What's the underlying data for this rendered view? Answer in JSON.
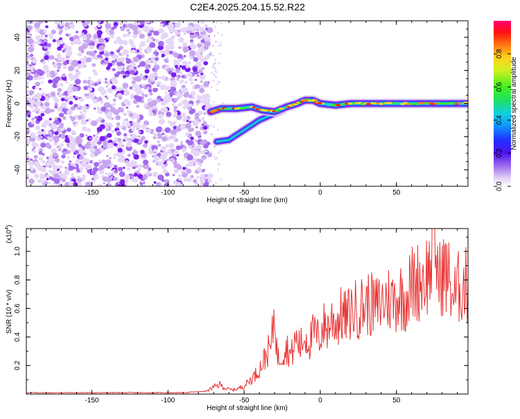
{
  "title": "C2E4.2025.204.15.52.R22",
  "colorbar": {
    "label": "Normalized spectral amplitude",
    "ticks": [
      "0.0",
      "0.2",
      "0.4",
      "0.6",
      "0.8"
    ],
    "tick_values": [
      0.0,
      0.2,
      0.4,
      0.6,
      0.8
    ]
  },
  "chart_data": [
    {
      "type": "heatmap",
      "xlabel": "Height of straight line (km)",
      "ylabel": "Frequency (Hz)",
      "xlim": [
        -193,
        97
      ],
      "ylim": [
        -50,
        50
      ],
      "x_ticks": [
        -150,
        -100,
        -50,
        0,
        50
      ],
      "x_tick_labels": [
        "-150",
        "-100",
        "-50",
        "0",
        "50"
      ],
      "y_ticks": [
        -40,
        -20,
        0,
        20,
        40
      ],
      "y_tick_labels": [
        "-40",
        "-20",
        "0",
        "20",
        "40"
      ],
      "description_regions": [
        {
          "x_range": [
            -193,
            -72
          ],
          "y_range": [
            -50,
            50
          ],
          "level": "low (purple noise)"
        },
        {
          "x_range": [
            -72,
            97
          ],
          "y_range": [
            -3,
            3
          ],
          "level": "high (signal band near 0 Hz)"
        }
      ],
      "signal_track": {
        "x": [
          -72,
          -65,
          -55,
          -45,
          -38,
          -30,
          -22,
          -15,
          -10,
          -5,
          0,
          10,
          20,
          30,
          40,
          50,
          60,
          70,
          80,
          90,
          97
        ],
        "y": [
          -5,
          -3,
          -3,
          -2,
          -4,
          -5,
          -2,
          0,
          2,
          2,
          0,
          -1,
          0,
          0,
          0,
          0,
          0,
          0,
          0,
          0,
          0
        ]
      },
      "secondary_track": {
        "x": [
          -68,
          -60,
          -55,
          -50,
          -45,
          -40,
          -35,
          -30,
          -25
        ],
        "y": [
          -23,
          -22,
          -19,
          -16,
          -13,
          -10,
          -8,
          -6,
          -4
        ]
      }
    },
    {
      "type": "line",
      "xlabel": "Height of straight line (km)",
      "ylabel": "SNR (10 * v/v)",
      "y_multiplier_label": "(x10",
      "y_multiplier_exp": "4",
      "xlim": [
        -193,
        97
      ],
      "ylim": [
        0,
        1.16
      ],
      "x_ticks": [
        -150,
        -100,
        -50,
        0,
        50
      ],
      "x_tick_labels": [
        "-150",
        "-100",
        "-50",
        "0",
        "50"
      ],
      "y_ticks": [
        0.2,
        0.4,
        0.6,
        0.8,
        1.0
      ],
      "y_tick_labels": [
        "0.2",
        "0.4",
        "0.6",
        "0.8",
        "1.0"
      ],
      "series": [
        {
          "color": "#e83030",
          "x": [
            -193,
            -170,
            -150,
            -130,
            -110,
            -90,
            -75,
            -70,
            -66,
            -62,
            -58,
            -54,
            -50,
            -46,
            -42,
            -38,
            -35,
            -32,
            -30,
            -28,
            -25,
            -22,
            -19,
            -16,
            -13,
            -10,
            -7,
            -4,
            -1,
            2,
            5,
            8,
            11,
            14,
            17,
            20,
            24,
            28,
            32,
            36,
            40,
            44,
            48,
            52,
            56,
            60,
            64,
            68,
            72,
            74,
            76,
            78,
            80,
            84,
            88,
            92,
            97
          ],
          "y": [
            0.01,
            0.01,
            0.01,
            0.01,
            0.01,
            0.01,
            0.02,
            0.05,
            0.07,
            0.04,
            0.03,
            0.04,
            0.06,
            0.1,
            0.15,
            0.22,
            0.3,
            0.35,
            0.62,
            0.25,
            0.3,
            0.34,
            0.28,
            0.4,
            0.35,
            0.42,
            0.38,
            0.45,
            0.4,
            0.5,
            0.48,
            0.55,
            0.52,
            0.58,
            0.55,
            0.6,
            0.62,
            0.64,
            0.66,
            0.63,
            0.66,
            0.7,
            0.68,
            0.72,
            0.7,
            0.8,
            0.82,
            0.85,
            0.9,
            1.12,
            1.05,
            0.8,
            0.9,
            0.85,
            0.7,
            0.8,
            0.78
          ]
        }
      ]
    }
  ]
}
